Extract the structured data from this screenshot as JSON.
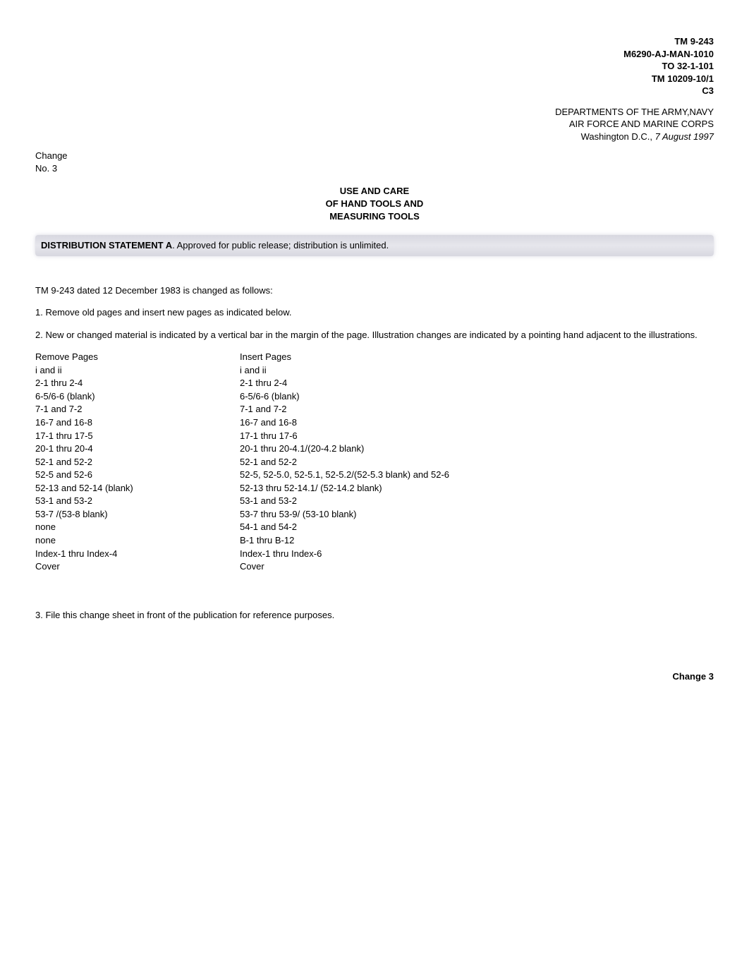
{
  "header": {
    "line1": "TM 9-243",
    "line2": "M6290-AJ-MAN-1010",
    "line3": "TO 32-1-101",
    "line4": "TM 10209-10/1",
    "line5": "C3"
  },
  "department": {
    "line1": "DEPARTMENTS OF THE ARMY,NAVY",
    "line2": "AIR FORCE AND MARINE CORPS",
    "line3_prefix": "Washington D.C.,   ",
    "line3_date": "7 August 1997"
  },
  "change_block": {
    "line1": "Change",
    "line2": "No.  3"
  },
  "title": {
    "line1": "USE AND CARE",
    "line2": "OF HAND TOOLS AND",
    "line3": "MEASURING TOOLS"
  },
  "distribution": {
    "label": "DISTRIBUTION STATEMENT A",
    "text": ".  Approved for public release; distribution is unlimited."
  },
  "body": {
    "p1": "TM 9-243 dated 12 December 1983 is changed as follows:",
    "p2": "1.  Remove old pages and insert new pages as indicated below.",
    "p3": "2.  New or changed material is indicated by a vertical bar in the margin of the page.   Illustration changes are indicated by a pointing hand adjacent to the illustrations.",
    "p4": "3.  File this change sheet in front of the publication for reference purposes."
  },
  "table": {
    "header_remove": "Remove Pages",
    "header_insert": "Insert Pages",
    "rows": [
      {
        "remove": "i and ii",
        "insert": "i and ii"
      },
      {
        "remove": "2-1 thru 2-4",
        "insert": "2-1 thru 2-4"
      },
      {
        "remove": "6-5/6-6 (blank)",
        "insert": "6-5/6-6 (blank)"
      },
      {
        "remove": "7-1 and 7-2",
        "insert": "7-1 and 7-2"
      },
      {
        "remove": "16-7 and 16-8",
        "insert": "16-7 and 16-8"
      },
      {
        "remove": "17-1 thru 17-5",
        "insert": "17-1 thru 17-6"
      },
      {
        "remove": "20-1 thru 20-4",
        "insert": "20-1 thru 20-4.1/(20-4.2 blank)"
      },
      {
        "remove": "52-1 and 52-2",
        "insert": "52-1 and 52-2"
      },
      {
        "remove": "52-5 and 52-6",
        "insert": "52-5, 52-5.0, 52-5.1, 52-5.2/(52-5.3 blank) and 52-6"
      },
      {
        "remove": "52-13 and 52-14 (blank)",
        "insert": "52-13 thru 52-14.1/ (52-14.2 blank)"
      },
      {
        "remove": "53-1 and 53-2",
        "insert": "53-1 and 53-2"
      },
      {
        "remove": "53-7 /(53-8 blank)",
        "insert": "53-7 thru 53-9/ (53-10 blank)"
      },
      {
        "remove": "none",
        "insert": "54-1 and 54-2"
      },
      {
        "remove": "none",
        "insert": "B-1 thru B-12"
      },
      {
        "remove": "Index-1 thru Index-4",
        "insert": "Index-1 thru Index-6"
      },
      {
        "remove": "Cover",
        "insert": "Cover"
      }
    ]
  },
  "footer": {
    "change": "Change 3"
  }
}
